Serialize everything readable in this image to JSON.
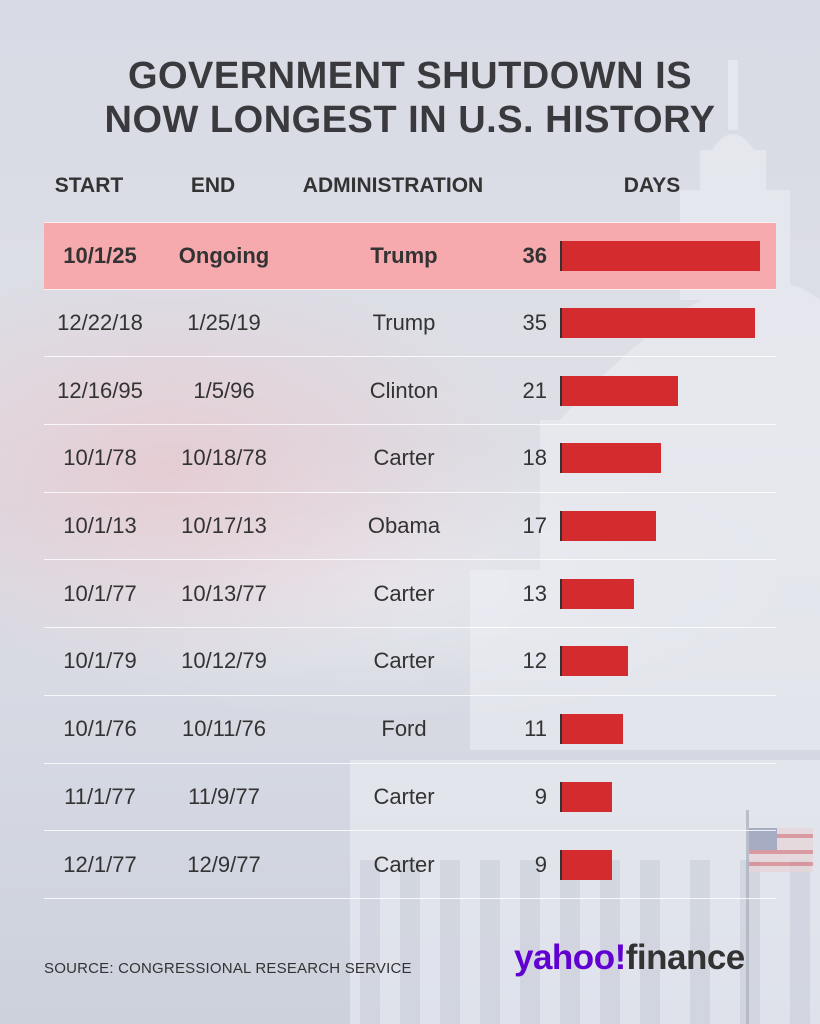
{
  "title": [
    "GOVERNMENT SHUTDOWN IS",
    "NOW LONGEST IN U.S. HISTORY"
  ],
  "headers": {
    "start": "START",
    "end": "END",
    "administration": "ADMINISTRATION",
    "days": "DAYS"
  },
  "source": "SOURCE: CONGRESSIONAL RESEARCH SERVICE",
  "logo": {
    "part1": "yahoo!",
    "part2": "finance",
    "brand_color": "#6001d2"
  },
  "colors": {
    "bar": "#d42b2f",
    "highlight_row": "#f7aaae"
  },
  "chart_data": {
    "type": "table",
    "columns": [
      "START",
      "END",
      "ADMINISTRATION",
      "DAYS"
    ],
    "rows": [
      {
        "start": "10/1/25",
        "end": "Ongoing",
        "administration": "Trump",
        "days": 36,
        "highlight": true
      },
      {
        "start": "12/22/18",
        "end": "1/25/19",
        "administration": "Trump",
        "days": 35
      },
      {
        "start": "12/16/95",
        "end": "1/5/96",
        "administration": "Clinton",
        "days": 21
      },
      {
        "start": "10/1/78",
        "end": "10/18/78",
        "administration": "Carter",
        "days": 18
      },
      {
        "start": "10/1/13",
        "end": "10/17/13",
        "administration": "Obama",
        "days": 17
      },
      {
        "start": "10/1/77",
        "end": "10/13/77",
        "administration": "Carter",
        "days": 13
      },
      {
        "start": "10/1/79",
        "end": "10/12/79",
        "administration": "Carter",
        "days": 12
      },
      {
        "start": "10/1/76",
        "end": "10/11/76",
        "administration": "Ford",
        "days": 11
      },
      {
        "start": "11/1/77",
        "end": "11/9/77",
        "administration": "Carter",
        "days": 9
      },
      {
        "start": "12/1/77",
        "end": "12/9/77",
        "administration": "Carter",
        "days": 9
      }
    ],
    "bar_max": 36
  }
}
